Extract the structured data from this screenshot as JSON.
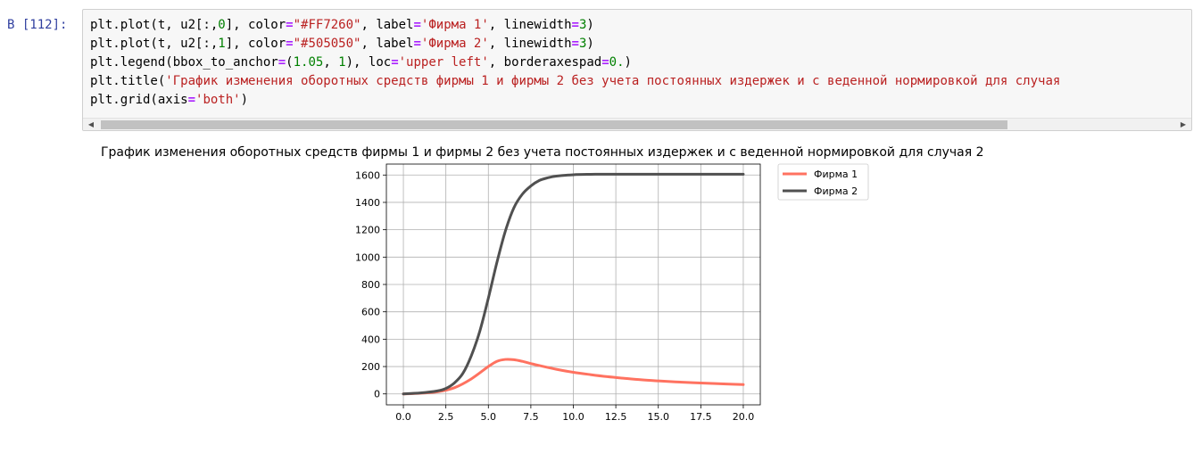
{
  "cell": {
    "prompt": "В [112]:",
    "code_lines": [
      [
        {
          "t": "plt.plot(t, u2[:,",
          "c": ""
        },
        {
          "t": "0",
          "c": "num"
        },
        {
          "t": "], color=",
          "c": ""
        },
        {
          "t": "\"#FF7260\"",
          "c": "str"
        },
        {
          "t": ", label=",
          "c": ""
        },
        {
          "t": "'Фирма 1'",
          "c": "str"
        },
        {
          "t": ", linewidth=",
          "c": ""
        },
        {
          "t": "3",
          "c": "num"
        },
        {
          "t": ")",
          "c": ""
        }
      ],
      [
        {
          "t": "plt.plot(t, u2[:,",
          "c": ""
        },
        {
          "t": "1",
          "c": "num"
        },
        {
          "t": "], color=",
          "c": ""
        },
        {
          "t": "\"#505050\"",
          "c": "str"
        },
        {
          "t": ", label=",
          "c": ""
        },
        {
          "t": "'Фирма 2'",
          "c": "str"
        },
        {
          "t": ", linewidth=",
          "c": ""
        },
        {
          "t": "3",
          "c": "num"
        },
        {
          "t": ")",
          "c": ""
        }
      ],
      [
        {
          "t": "plt.legend(bbox_to_anchor=(",
          "c": ""
        },
        {
          "t": "1.05",
          "c": "num"
        },
        {
          "t": ", ",
          "c": ""
        },
        {
          "t": "1",
          "c": "num"
        },
        {
          "t": "), loc=",
          "c": ""
        },
        {
          "t": "'upper left'",
          "c": "str"
        },
        {
          "t": ", borderaxespad=",
          "c": ""
        },
        {
          "t": "0.",
          "c": "num"
        },
        {
          "t": ")",
          "c": ""
        }
      ],
      [
        {
          "t": "plt.title(",
          "c": ""
        },
        {
          "t": "'График изменения оборотных средств фирмы 1 и фирмы 2 без учета постоянных издержек и с веденной нормировкой для случая",
          "c": "str"
        }
      ],
      [
        {
          "t": "plt.grid(axis=",
          "c": ""
        },
        {
          "t": "'both'",
          "c": "str"
        },
        {
          "t": ")",
          "c": ""
        }
      ]
    ]
  },
  "icons": {
    "scroll_left": "scroll-left-arrow-icon",
    "scroll_right": "scroll-right-arrow-icon"
  },
  "chart_data": {
    "type": "line",
    "title": "График изменения оборотных средств фирмы 1 и фирмы 2 без учета постоянных издержек и с веденной нормировкой для случая 2",
    "xlabel": "",
    "ylabel": "",
    "xlim": [
      -1,
      21
    ],
    "ylim": [
      -80,
      1680
    ],
    "xticks": [
      "0.0",
      "2.5",
      "5.0",
      "7.5",
      "10.0",
      "12.5",
      "15.0",
      "17.5",
      "20.0"
    ],
    "yticks": [
      "0",
      "200",
      "400",
      "600",
      "800",
      "1000",
      "1200",
      "1400",
      "1600"
    ],
    "grid": true,
    "legend": "upper left, outside right",
    "series": [
      {
        "name": "Фирма 1",
        "color": "#FF7260",
        "x": [
          0,
          1,
          2,
          3,
          4,
          5,
          5.5,
          6,
          6.5,
          7,
          7.5,
          8,
          9,
          10,
          11,
          12,
          13,
          14,
          15,
          16,
          17,
          18,
          19,
          20
        ],
        "y": [
          0,
          5,
          15,
          45,
          110,
          200,
          238,
          252,
          250,
          238,
          222,
          207,
          180,
          158,
          141,
          126,
          114,
          103,
          95,
          88,
          82,
          77,
          72,
          68
        ]
      },
      {
        "name": "Фирма 2",
        "color": "#505050",
        "x": [
          0,
          1,
          2,
          2.5,
          3,
          3.5,
          4,
          4.5,
          5,
          5.5,
          6,
          6.5,
          7,
          7.5,
          8,
          8.5,
          9,
          10,
          11,
          12,
          14,
          16,
          18,
          20
        ],
        "y": [
          0,
          7,
          22,
          40,
          80,
          150,
          280,
          460,
          700,
          960,
          1190,
          1360,
          1460,
          1520,
          1560,
          1580,
          1592,
          1602,
          1605,
          1606,
          1606,
          1606,
          1606,
          1606
        ]
      }
    ]
  }
}
